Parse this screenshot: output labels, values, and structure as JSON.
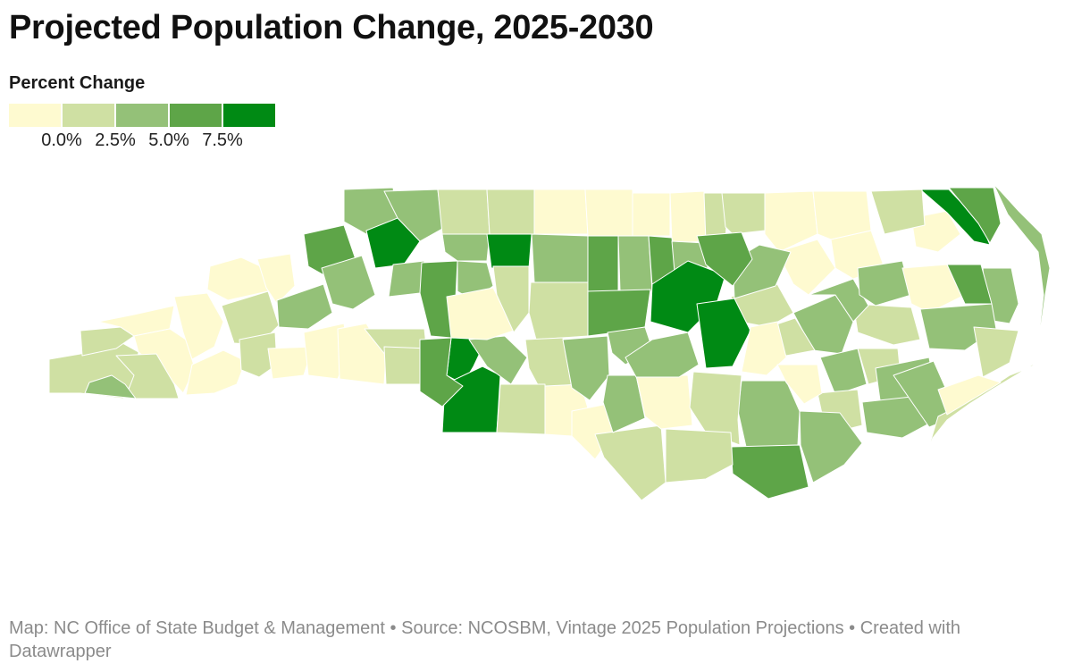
{
  "title": "Projected Population Change, 2025-2030",
  "legend": {
    "title": "Percent Change",
    "colors": [
      "#fefad0",
      "#cfe0a3",
      "#94c178",
      "#5ea548",
      "#008a14"
    ],
    "ticks": [
      "0.0%",
      "2.5%",
      "5.0%",
      "7.5%"
    ]
  },
  "footer": {
    "map_credit": "Map: NC Office of State Budget & Management",
    "separator": "•",
    "source": "Source: NCOSBM, Vintage 2025 Population Projections",
    "created_with": "Created with Datawrapper"
  },
  "map": {
    "region": "North Carolina",
    "unit": "Percent Change",
    "county_classes": [
      1,
      1,
      0,
      0,
      1,
      0,
      0,
      1,
      0,
      1,
      0,
      0,
      0,
      0,
      2,
      3,
      2,
      2,
      4,
      2,
      2,
      3,
      1,
      2,
      2,
      1,
      0,
      4,
      1,
      1,
      4,
      3,
      2,
      4,
      2,
      3,
      0,
      0,
      0,
      1,
      2,
      3,
      3,
      1,
      0,
      1,
      2,
      1,
      1,
      0,
      0,
      1,
      2,
      2,
      0,
      2,
      2,
      4,
      1,
      0,
      0,
      1,
      0,
      0,
      2,
      1,
      2,
      1,
      2,
      3,
      2,
      1,
      1,
      2,
      2,
      4,
      2,
      3,
      2,
      0,
      1,
      0,
      1,
      2,
      0,
      2,
      4,
      3,
      2,
      1,
      0,
      3,
      2,
      2,
      1,
      0,
      1,
      2,
      2,
      4
    ]
  }
}
